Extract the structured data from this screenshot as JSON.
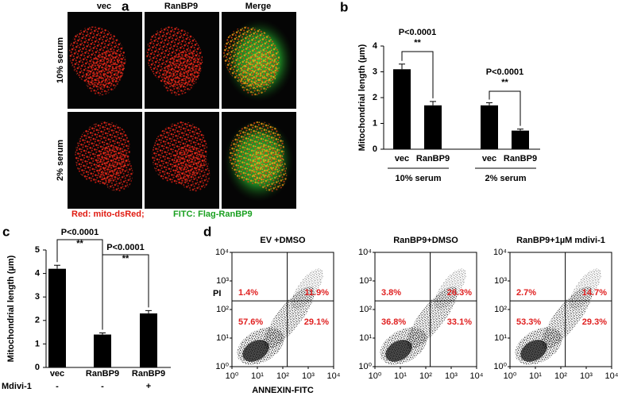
{
  "figure_panel": {
    "label": "a",
    "columns": [
      "vec",
      "RanBP9",
      "Merge"
    ],
    "rows": [
      "10% serum",
      "2% serum"
    ],
    "legend": [
      "Red: mito-dsRed;",
      "FITC: Flag-RanBP9"
    ]
  },
  "chart_data": [
    {
      "type": "bar",
      "panel": "b",
      "ylabel": "Mitochondrial length (µm)",
      "categories": [
        "vec",
        "RanBP9",
        "vec",
        "RanBP9"
      ],
      "groups": [
        "10% serum",
        "2% serum"
      ],
      "values": [
        3.1,
        1.7,
        1.7,
        0.72
      ],
      "errors": [
        0.2,
        0.15,
        0.1,
        0.06
      ],
      "color": "#000000",
      "ylim": [
        0,
        4
      ],
      "yticks": [
        0,
        1,
        2,
        3,
        4
      ],
      "annotations": [
        {
          "text": "P<0.0001",
          "sig": "**"
        },
        {
          "text": "P<0.0001",
          "sig": "**"
        }
      ]
    },
    {
      "type": "bar",
      "panel": "c",
      "ylabel": "Mitochondrial length (µm)",
      "categories": [
        "vec",
        "RanBP9",
        "RanBP9"
      ],
      "treatment_label": "Mdivi-1",
      "treatment": [
        "-",
        "-",
        "+"
      ],
      "values": [
        4.2,
        1.4,
        2.3
      ],
      "errors": [
        0.15,
        0.07,
        0.12
      ],
      "color": "#000000",
      "ylim": [
        0,
        5
      ],
      "yticks": [
        0,
        1,
        2,
        3,
        4,
        5
      ],
      "annotations": [
        {
          "text": "P<0.0001",
          "sig": "**"
        },
        {
          "text": "P<0.0001",
          "sig": "**"
        }
      ]
    },
    {
      "type": "quadrant",
      "panel": "d",
      "title": "EV +DMSO",
      "xlabel": "ANNEXIN-FITC",
      "ylabel": "PI",
      "values": [
        1.4,
        11.9,
        57.6,
        29.1
      ],
      "value_labels": [
        "1.4%",
        "11.9%",
        "57.6%",
        "29.1%"
      ],
      "gate_x": 150,
      "gate_y": 200,
      "log_scale": true,
      "xlim": [
        1,
        10000
      ],
      "ylim": [
        1,
        10000
      ],
      "xticks": [
        {
          "value": 1,
          "label": "10⁰"
        },
        {
          "value": 10,
          "label": "10¹"
        },
        {
          "value": 100,
          "label": "10²"
        },
        {
          "value": 1000,
          "label": "10³"
        },
        {
          "value": 10000,
          "label": "10⁴"
        }
      ],
      "yticks": [
        {
          "value": 1,
          "label": "10⁰"
        },
        {
          "value": 10,
          "label": "10¹"
        },
        {
          "value": 100,
          "label": "10²"
        },
        {
          "value": 1000,
          "label": "10³"
        },
        {
          "value": 10000,
          "label": "10⁴"
        }
      ]
    },
    {
      "type": "quadrant",
      "title": "RanBP9+DMSO",
      "values": [
        3.8,
        26.3,
        36.8,
        33.1
      ],
      "value_labels": [
        "3.8%",
        "26.3%",
        "36.8%",
        "33.1%"
      ],
      "gate_x": 150,
      "gate_y": 200,
      "log_scale": true,
      "xlim": [
        1,
        10000
      ],
      "ylim": [
        1,
        10000
      ],
      "xticks": [
        {
          "value": 1,
          "label": "10⁰"
        },
        {
          "value": 10,
          "label": "10¹"
        },
        {
          "value": 100,
          "label": "10²"
        },
        {
          "value": 1000,
          "label": "10³"
        },
        {
          "value": 10000,
          "label": "10⁴"
        }
      ],
      "yticks": [
        {
          "value": 1,
          "label": "10⁰"
        },
        {
          "value": 10,
          "label": "10¹"
        },
        {
          "value": 100,
          "label": "10²"
        },
        {
          "value": 1000,
          "label": "10³"
        },
        {
          "value": 10000,
          "label": "10⁴"
        }
      ]
    },
    {
      "type": "quadrant",
      "title": "RanBP9+1µM mdivi-1",
      "values": [
        2.7,
        14.7,
        53.3,
        29.3
      ],
      "value_labels": [
        "2.7%",
        "14.7%",
        "53.3%",
        "29.3%"
      ],
      "gate_x": 150,
      "gate_y": 200,
      "log_scale": true,
      "xlim": [
        1,
        10000
      ],
      "ylim": [
        1,
        10000
      ],
      "xticks": [
        {
          "value": 1,
          "label": "10⁰"
        },
        {
          "value": 10,
          "label": "10¹"
        },
        {
          "value": 100,
          "label": "10²"
        },
        {
          "value": 1000,
          "label": "10³"
        },
        {
          "value": 10000,
          "label": "10⁴"
        }
      ],
      "yticks": [
        {
          "value": 1,
          "label": "10⁰"
        },
        {
          "value": 10,
          "label": "10¹"
        },
        {
          "value": 100,
          "label": "10²"
        },
        {
          "value": 1000,
          "label": "10³"
        },
        {
          "value": 10000,
          "label": "10⁴"
        }
      ]
    }
  ]
}
